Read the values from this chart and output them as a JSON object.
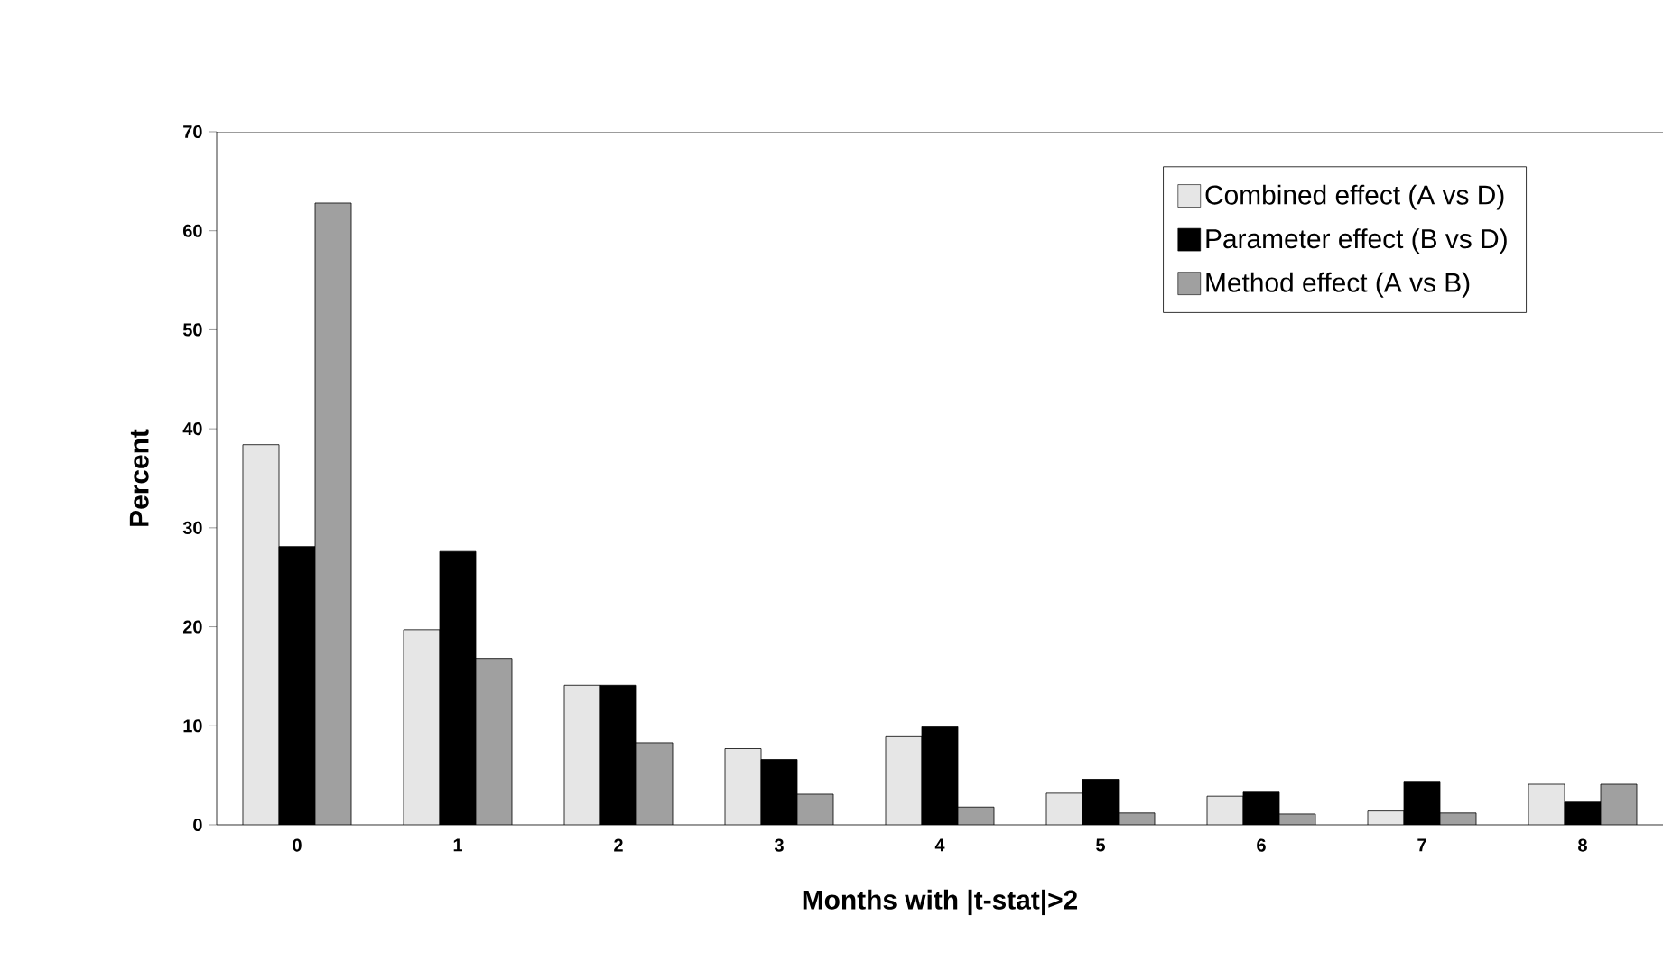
{
  "chart_data": {
    "type": "bar",
    "xlabel": "Months with |t-stat|>2",
    "ylabel": "Percent",
    "categories": [
      "0",
      "1",
      "2",
      "3",
      "4",
      "5",
      "6",
      "7",
      "8"
    ],
    "series": [
      {
        "name": "Combined effect (A vs D)",
        "color": "#e6e6e6",
        "values": [
          38.4,
          19.7,
          14.1,
          7.7,
          8.9,
          3.2,
          2.9,
          1.4,
          4.1
        ]
      },
      {
        "name": "Parameter effect (B vs D)",
        "color": "#000000",
        "values": [
          28.1,
          27.6,
          14.1,
          6.6,
          9.9,
          4.6,
          3.3,
          4.4,
          2.3
        ]
      },
      {
        "name": "Method effect (A vs B)",
        "color": "#a0a0a0",
        "values": [
          62.8,
          16.8,
          8.3,
          3.1,
          1.8,
          1.2,
          1.1,
          1.2,
          4.1
        ]
      }
    ],
    "ylim": [
      0,
      70
    ],
    "yticks": [
      0,
      10,
      20,
      30,
      40,
      50,
      60,
      70
    ],
    "legend": "top right",
    "grid": false
  }
}
